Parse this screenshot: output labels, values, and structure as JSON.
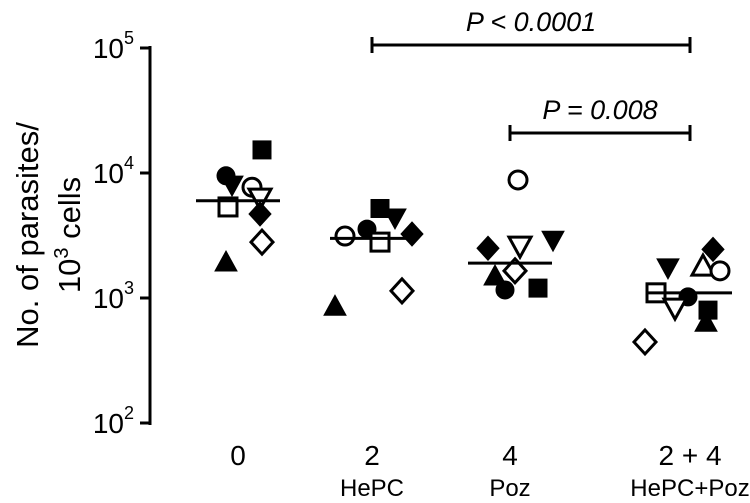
{
  "chart_data": {
    "type": "dot-plot",
    "ylabel": {
      "line1": "No. of parasites/",
      "base": "10",
      "exponent": "3",
      "rest": " cells"
    },
    "log_scale": true,
    "ylim": [
      100,
      100000
    ],
    "yticks": [
      {
        "value": 100,
        "label": "10",
        "exponent": "2"
      },
      {
        "value": 1000,
        "label": "10",
        "exponent": "3"
      },
      {
        "value": 10000,
        "label": "10",
        "exponent": "4"
      },
      {
        "value": 100000,
        "label": "10",
        "exponent": "5"
      }
    ],
    "categories": [
      "0",
      "2",
      "4",
      "2 + 4"
    ],
    "sublabels": [
      null,
      "HePC",
      "Poz",
      "HePC+Poz"
    ],
    "color": "#000000",
    "groups": [
      {
        "values": [
          9500,
          15300,
          8000,
          7700,
          5350,
          6300,
          4700,
          2800,
          1940
        ],
        "markers": [
          "filled-circle",
          "filled-square",
          "filled-triangle-down",
          "open-circle",
          "open-square",
          "open-triangle-down",
          "filled-diamond",
          "open-diamond",
          "filled-triangle-up"
        ],
        "median": 6000
      },
      {
        "values": [
          3130,
          3560,
          5200,
          4370,
          3250,
          2800,
          1140,
          860
        ],
        "markers": [
          "open-circle",
          "filled-circle",
          "filled-square",
          "filled-triangle-down",
          "filled-diamond",
          "open-square",
          "open-diamond",
          "filled-triangle-up"
        ],
        "median": 3000
      },
      {
        "values": [
          8800,
          2500,
          2600,
          2900,
          1160,
          1650,
          1500,
          1200
        ],
        "markers": [
          "open-circle",
          "filled-diamond",
          "open-triangle-down",
          "filled-triangle-down",
          "filled-circle",
          "open-diamond",
          "filled-triangle-up",
          "filled-square"
        ],
        "median": 1900
      },
      {
        "values": [
          2450,
          1740,
          1800,
          1650,
          1100,
          1020,
          830,
          800,
          640,
          445
        ],
        "markers": [
          "filled-diamond",
          "filled-triangle-down",
          "open-triangle-up",
          "open-circle",
          "open-square",
          "filled-circle",
          "open-triangle-down",
          "filled-square",
          "filled-triangle-up",
          "open-diamond"
        ],
        "median": 1100
      }
    ],
    "annotations": [
      {
        "text": "P < 0.0001",
        "from": 1,
        "to": 3
      },
      {
        "text": "P = 0.008",
        "from": 2,
        "to": 3
      }
    ]
  }
}
